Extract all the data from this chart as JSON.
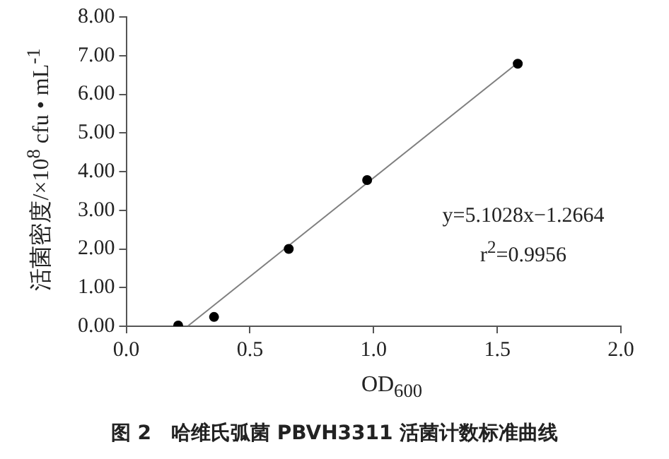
{
  "chart_data": {
    "type": "scatter",
    "title": "图 2　哈维氏弧菌 PBVH3311 活菌计数标准曲线",
    "xlabel": "OD$_{600}$",
    "ylabel": "活菌密度/×10$^{8}$ cfu • mL$^{-1}$",
    "annotations": [
      "y=5.1028x−1.2664",
      "r$^{2}$=0.9956"
    ],
    "x": [
      0.21,
      0.355,
      0.657,
      0.974,
      1.583
    ],
    "series": [
      {
        "color": "#000000",
        "values": [
          0.02,
          0.24,
          2.0,
          3.78,
          6.79
        ],
        "marker": "circle"
      },
      {
        "type": "line",
        "color": "#7f7f7f",
        "x": [
          0.25,
          1.59
        ],
        "values": [
          0.01,
          6.85
        ],
        "marker": "none",
        "line_style": "solid"
      }
    ],
    "xlim": [
      0,
      2
    ],
    "xticks": [
      {
        "value": 0,
        "label": "0.0"
      },
      {
        "value": 0.5,
        "label": "0.5"
      },
      {
        "value": 1,
        "label": "1.0"
      },
      {
        "value": 1.5,
        "label": "1.5"
      },
      {
        "value": 2,
        "label": "2.0"
      }
    ],
    "ylim": [
      0,
      8
    ],
    "yticks": [
      {
        "value": 0,
        "label": "0.00"
      },
      {
        "value": 1,
        "label": "1.00"
      },
      {
        "value": 2,
        "label": "2.00"
      },
      {
        "value": 3,
        "label": "3.00"
      },
      {
        "value": 4,
        "label": "4.00"
      },
      {
        "value": 5,
        "label": "5.00"
      },
      {
        "value": 6,
        "label": "6.00"
      },
      {
        "value": 7,
        "label": "7.00"
      },
      {
        "value": 8,
        "label": "8.00"
      }
    ],
    "grid": false,
    "legend": false
  }
}
